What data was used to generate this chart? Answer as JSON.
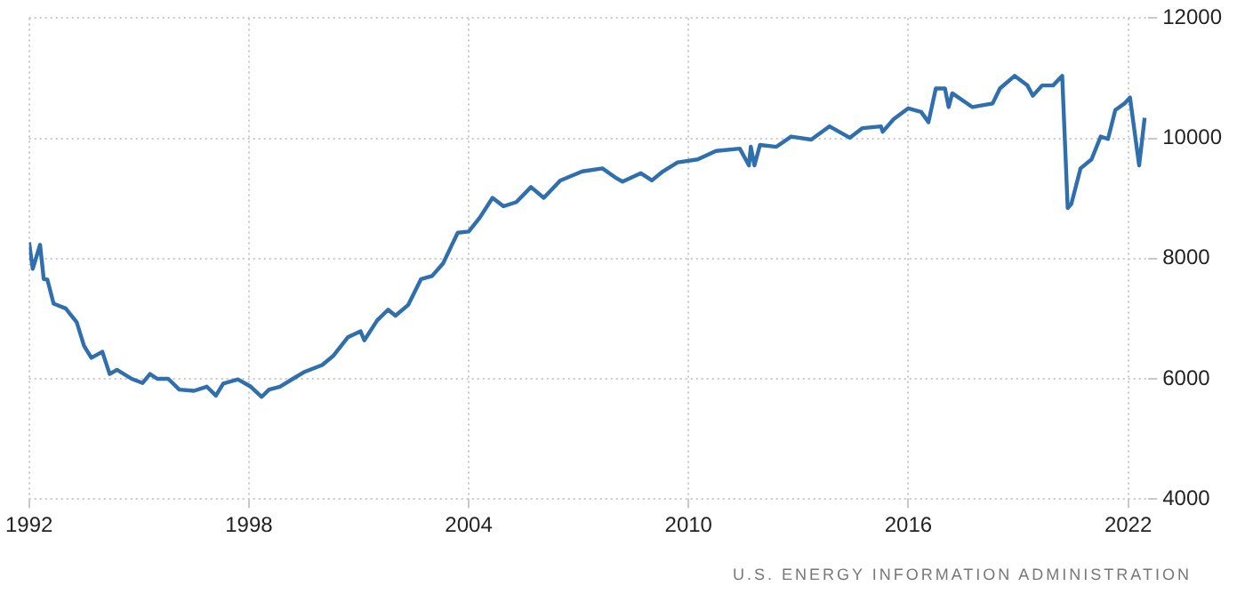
{
  "chart_data": {
    "type": "line",
    "marker": "none",
    "line_style": "solid",
    "legend": false,
    "grid": true,
    "xlim": [
      1992,
      2022.55
    ],
    "xticks": [
      1992,
      1998,
      2004,
      2010,
      2016,
      2022
    ],
    "ylim": [
      4000,
      12000
    ],
    "yticks": [
      4000,
      6000,
      8000,
      10000,
      12000
    ],
    "annotations": [
      "U.S. ENERGY INFORMATION ADMINISTRATION"
    ],
    "series": [
      {
        "color": "#2f6fad",
        "x": [
          1992.0,
          1992.1,
          1992.3,
          1992.4,
          1992.5,
          1992.67,
          1993.0,
          1993.3,
          1993.5,
          1993.7,
          1994.0,
          1994.2,
          1994.4,
          1994.8,
          1995.1,
          1995.3,
          1995.5,
          1995.8,
          1996.1,
          1996.5,
          1996.85,
          1997.1,
          1997.3,
          1997.7,
          1998.05,
          1998.35,
          1998.55,
          1998.85,
          1999.2,
          1999.5,
          2000.0,
          2000.3,
          2000.7,
          2001.05,
          2001.15,
          2001.5,
          2001.8,
          2002.0,
          2002.35,
          2002.7,
          2003.0,
          2003.3,
          2003.7,
          2004.0,
          2004.3,
          2004.65,
          2004.95,
          2005.3,
          2005.7,
          2006.05,
          2006.5,
          2007.1,
          2007.65,
          2008.0,
          2008.2,
          2008.7,
          2009.0,
          2009.3,
          2009.7,
          2010.25,
          2010.75,
          2011.4,
          2011.65,
          2011.7,
          2011.8,
          2011.95,
          2012.4,
          2012.8,
          2013.35,
          2013.85,
          2014.4,
          2014.75,
          2015.25,
          2015.3,
          2015.6,
          2016.0,
          2016.35,
          2016.55,
          2016.75,
          2017.0,
          2017.1,
          2017.2,
          2017.75,
          2018.3,
          2018.5,
          2018.9,
          2019.25,
          2019.4,
          2019.65,
          2019.95,
          2020.2,
          2020.35,
          2020.45,
          2020.7,
          2021.0,
          2021.25,
          2021.45,
          2021.65,
          2021.9,
          2022.05,
          2022.3,
          2022.45
        ],
        "values": [
          8270,
          7830,
          8230,
          7660,
          7650,
          7250,
          7170,
          6940,
          6550,
          6350,
          6450,
          6080,
          6150,
          6000,
          5930,
          6080,
          6000,
          6000,
          5820,
          5800,
          5870,
          5720,
          5920,
          5990,
          5870,
          5700,
          5820,
          5870,
          6000,
          6110,
          6230,
          6380,
          6690,
          6790,
          6640,
          6970,
          7150,
          7050,
          7230,
          7660,
          7710,
          7920,
          8430,
          8450,
          8680,
          9010,
          8870,
          8940,
          9190,
          9010,
          9300,
          9450,
          9500,
          9350,
          9280,
          9420,
          9300,
          9450,
          9600,
          9650,
          9790,
          9830,
          9550,
          9860,
          9550,
          9890,
          9860,
          10030,
          9980,
          10200,
          10010,
          10170,
          10200,
          10110,
          10320,
          10500,
          10440,
          10270,
          10830,
          10830,
          10520,
          10750,
          10520,
          10580,
          10830,
          11040,
          10880,
          10710,
          10880,
          10880,
          11040,
          8840,
          8910,
          9500,
          9650,
          10030,
          9990,
          10470,
          10580,
          10680,
          9550,
          10340
        ]
      }
    ]
  }
}
